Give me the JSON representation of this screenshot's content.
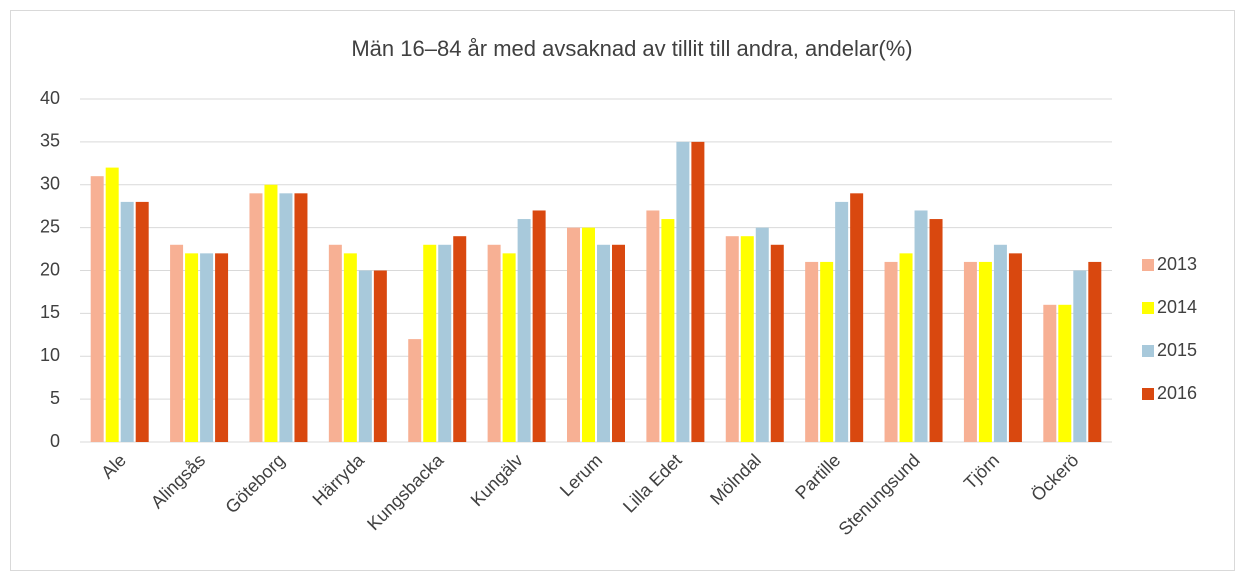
{
  "chart_data": {
    "type": "bar",
    "title": "Män 16–84 år med avsaknad av tillit till andra, andelar(%)",
    "categories": [
      "Ale",
      "Alingsås",
      "Göteborg",
      "Härryda",
      "Kungsbacka",
      "Kungälv",
      "Lerum",
      "Lilla Edet",
      "Mölndal",
      "Partille",
      "Stenungsund",
      "Tjörn",
      "Öckerö"
    ],
    "series": [
      {
        "name": "2013",
        "color": "#f7b094",
        "values": [
          31,
          23,
          29,
          23,
          12,
          23,
          25,
          27,
          24,
          21,
          21,
          21,
          16
        ]
      },
      {
        "name": "2014",
        "color": "#ffff00",
        "values": [
          32,
          22,
          30,
          22,
          23,
          22,
          25,
          26,
          24,
          21,
          22,
          21,
          16
        ]
      },
      {
        "name": "2015",
        "color": "#a8c9db",
        "values": [
          28,
          22,
          29,
          20,
          23,
          26,
          23,
          35,
          25,
          28,
          27,
          23,
          20
        ]
      },
      {
        "name": "2016",
        "color": "#d9480f",
        "values": [
          28,
          22,
          29,
          20,
          24,
          27,
          23,
          35,
          23,
          29,
          26,
          22,
          21
        ]
      }
    ],
    "ylim": [
      0,
      40
    ],
    "yticks": [
      0,
      5,
      10,
      15,
      20,
      25,
      30,
      35,
      40
    ],
    "grid": true,
    "legend": "right"
  }
}
